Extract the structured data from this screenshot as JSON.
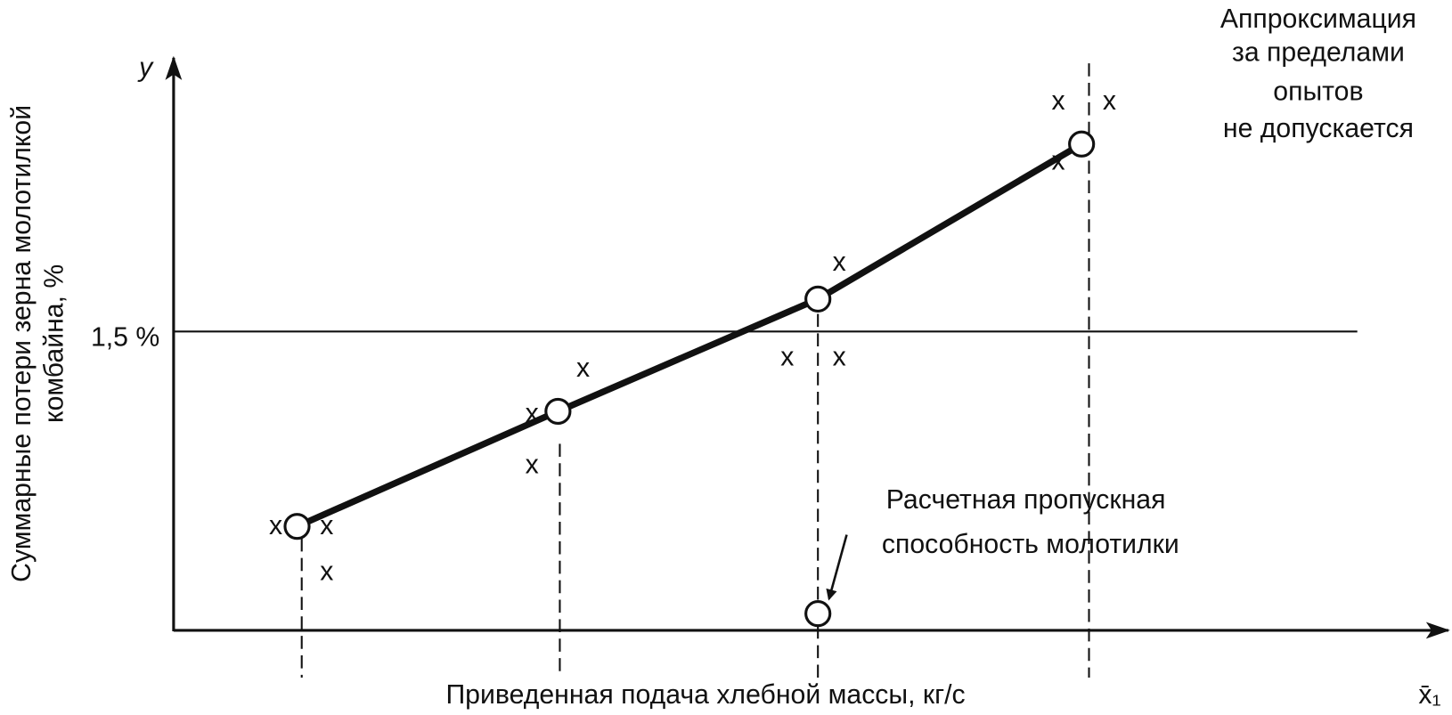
{
  "axes": {
    "y_symbol": "y",
    "x_symbol": "x̄₁",
    "y_label": [
      "Суммарные потери зерна молотилкой",
      "комбайна, %"
    ],
    "x_label": "Приведенная подача хлебной массы, кг/с"
  },
  "threshold_label": "1,5 %",
  "annotation": [
    "Расчетная пропускная",
    "способность молотилки"
  ],
  "note": [
    "Аппроксимация",
    "за пределами",
    "опытов",
    "не допускается"
  ],
  "marker": "x"
}
